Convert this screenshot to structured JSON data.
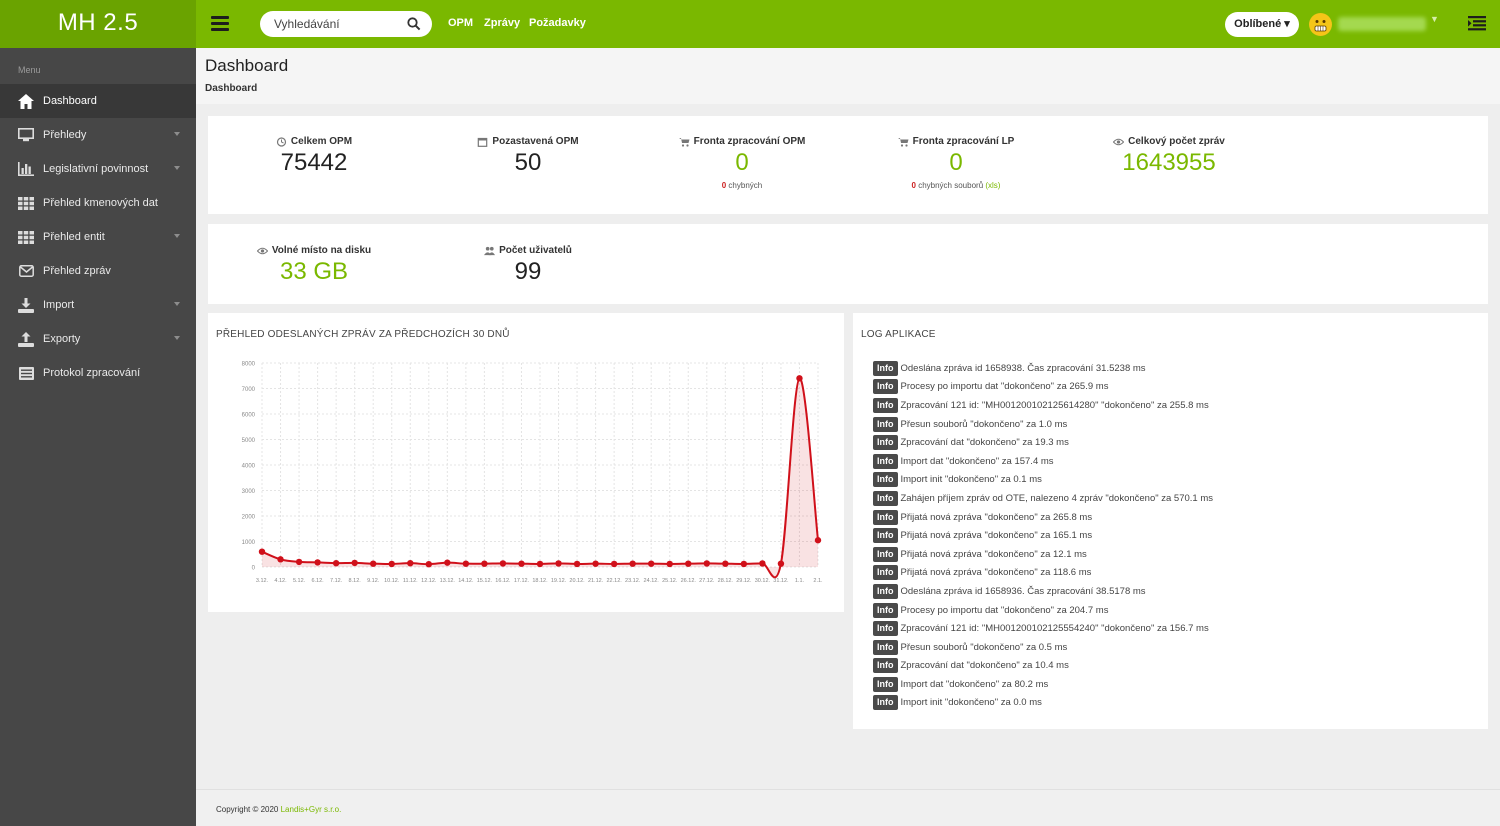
{
  "app": {
    "title": "MH 2.5"
  },
  "search": {
    "placeholder": "Vyhledávání"
  },
  "topnav": [
    "OPM",
    "Zprávy",
    "Požadavky"
  ],
  "header": {
    "favorites_label": "Oblíbené ▾"
  },
  "sidebar": {
    "menu_label": "Menu",
    "items": [
      {
        "label": "Dashboard",
        "icon": "home-icon",
        "active": true,
        "has_submenu": false
      },
      {
        "label": "Přehledy",
        "icon": "monitor-icon",
        "active": false,
        "has_submenu": true
      },
      {
        "label": "Legislativní povinnost",
        "icon": "bar-chart-icon",
        "active": false,
        "has_submenu": true
      },
      {
        "label": "Přehled kmenových dat",
        "icon": "grid-icon",
        "active": false,
        "has_submenu": false
      },
      {
        "label": "Přehled entit",
        "icon": "grid-icon",
        "active": false,
        "has_submenu": true
      },
      {
        "label": "Přehled zpráv",
        "icon": "envelope-icon",
        "active": false,
        "has_submenu": false
      },
      {
        "label": "Import",
        "icon": "download-icon",
        "active": false,
        "has_submenu": true
      },
      {
        "label": "Exporty",
        "icon": "upload-icon",
        "active": false,
        "has_submenu": true
      },
      {
        "label": "Protokol zpracování",
        "icon": "list-icon",
        "active": false,
        "has_submenu": false
      }
    ]
  },
  "page": {
    "title": "Dashboard",
    "breadcrumb": "Dashboard"
  },
  "stats_row1": [
    {
      "label": "Celkem OPM",
      "icon": "clock-icon",
      "value": "75442",
      "green": false
    },
    {
      "label": "Pozastavená OPM",
      "icon": "calendar-icon",
      "value": "50",
      "green": false
    },
    {
      "label": "Fronta zpracování OPM",
      "icon": "cart-icon",
      "value": "0",
      "green": true,
      "sub_count": "0",
      "sub_text": " chybných",
      "sub_extra": ""
    },
    {
      "label": "Fronta zpracování LP",
      "icon": "cart-icon",
      "value": "0",
      "green": true,
      "sub_count": "0",
      "sub_text": " chybných souborů ",
      "sub_extra": "(xls)"
    },
    {
      "label": "Celkový počet zpráv",
      "icon": "eye-icon",
      "value": "1643955",
      "green": true
    }
  ],
  "stats_row2": [
    {
      "label": "Volné místo na disku",
      "icon": "eye-icon",
      "value": "33 GB",
      "green": true
    },
    {
      "label": "Počet uživatelů",
      "icon": "users-icon",
      "value": "99",
      "green": false
    }
  ],
  "chart_panel": {
    "title": "PŘEHLED ODESLANÝCH ZPRÁV ZA PŘEDCHOZÍCH 30 DNŮ"
  },
  "chart_data": {
    "type": "area",
    "title": "PŘEHLED ODESLANÝCH ZPRÁV ZA PŘEDCHOZÍCH 30 DNŮ",
    "xlabel": "",
    "ylabel": "",
    "ylim": [
      0,
      8000
    ],
    "yticks": [
      0,
      1000,
      2000,
      3000,
      4000,
      5000,
      6000,
      7000,
      8000
    ],
    "grid": true,
    "x": [
      "3.12.",
      "4.12.",
      "5.12.",
      "6.12.",
      "7.12.",
      "8.12.",
      "9.12.",
      "10.12.",
      "11.12.",
      "12.12.",
      "13.12.",
      "14.12.",
      "15.12.",
      "16.12.",
      "17.12.",
      "18.12.",
      "19.12.",
      "20.12.",
      "21.12.",
      "22.12.",
      "23.12.",
      "24.12.",
      "25.12.",
      "26.12.",
      "27.12.",
      "28.12.",
      "29.12.",
      "30.12.",
      "31.12.",
      "1.1.",
      "2.1."
    ],
    "series": [
      {
        "values": [
          600,
          300,
          200,
          180,
          150,
          160,
          130,
          120,
          150,
          110,
          170,
          130,
          130,
          140,
          130,
          120,
          140,
          120,
          130,
          120,
          130,
          130,
          120,
          130,
          140,
          130,
          120,
          140,
          130,
          7400,
          1050
        ],
        "color": "#d0101a"
      }
    ]
  },
  "log_panel": {
    "title": "LOG APLIKACE",
    "entries": [
      {
        "level": "Info",
        "text": "Odeslána zpráva id 1658938. Čas zpracování 31.5238 ms"
      },
      {
        "level": "Info",
        "text": "Procesy po importu dat \"dokončeno\" za 265.9 ms"
      },
      {
        "level": "Info",
        "text": "Zpracování 121 id: \"MH001200102125614280\" \"dokončeno\" za 255.8 ms"
      },
      {
        "level": "Info",
        "text": "Přesun souborů \"dokončeno\" za 1.0 ms"
      },
      {
        "level": "Info",
        "text": "Zpracování dat \"dokončeno\" za 19.3 ms"
      },
      {
        "level": "Info",
        "text": "Import dat \"dokončeno\" za 157.4 ms"
      },
      {
        "level": "Info",
        "text": "Import init \"dokončeno\" za 0.1 ms"
      },
      {
        "level": "Info",
        "text": "Zahájen příjem zpráv od OTE, nalezeno 4 zpráv \"dokončeno\" za 570.1 ms"
      },
      {
        "level": "Info",
        "text": "Přijatá nová zpráva \"dokončeno\" za 265.8 ms"
      },
      {
        "level": "Info",
        "text": "Přijatá nová zpráva \"dokončeno\" za 165.1 ms"
      },
      {
        "level": "Info",
        "text": "Přijatá nová zpráva \"dokončeno\" za 12.1 ms"
      },
      {
        "level": "Info",
        "text": "Přijatá nová zpráva \"dokončeno\" za 118.6 ms"
      },
      {
        "level": "Info",
        "text": "Odeslána zpráva id 1658936. Čas zpracování 38.5178 ms"
      },
      {
        "level": "Info",
        "text": "Procesy po importu dat \"dokončeno\" za 204.7 ms"
      },
      {
        "level": "Info",
        "text": "Zpracování 121 id: \"MH001200102125554240\" \"dokončeno\" za 156.7 ms"
      },
      {
        "level": "Info",
        "text": "Přesun souborů \"dokončeno\" za 0.5 ms"
      },
      {
        "level": "Info",
        "text": "Zpracování dat \"dokončeno\" za 10.4 ms"
      },
      {
        "level": "Info",
        "text": "Import dat \"dokončeno\" za 80.2 ms"
      },
      {
        "level": "Info",
        "text": "Import init \"dokončeno\" za 0.0 ms"
      }
    ]
  },
  "footer": {
    "text": "Copyright © 2020 ",
    "link": "Landis+Gyr s.r.o."
  },
  "colors": {
    "accent": "#7ab800",
    "brand": "#6aa300",
    "sidebar": "#474747",
    "series": "#d0101a"
  }
}
